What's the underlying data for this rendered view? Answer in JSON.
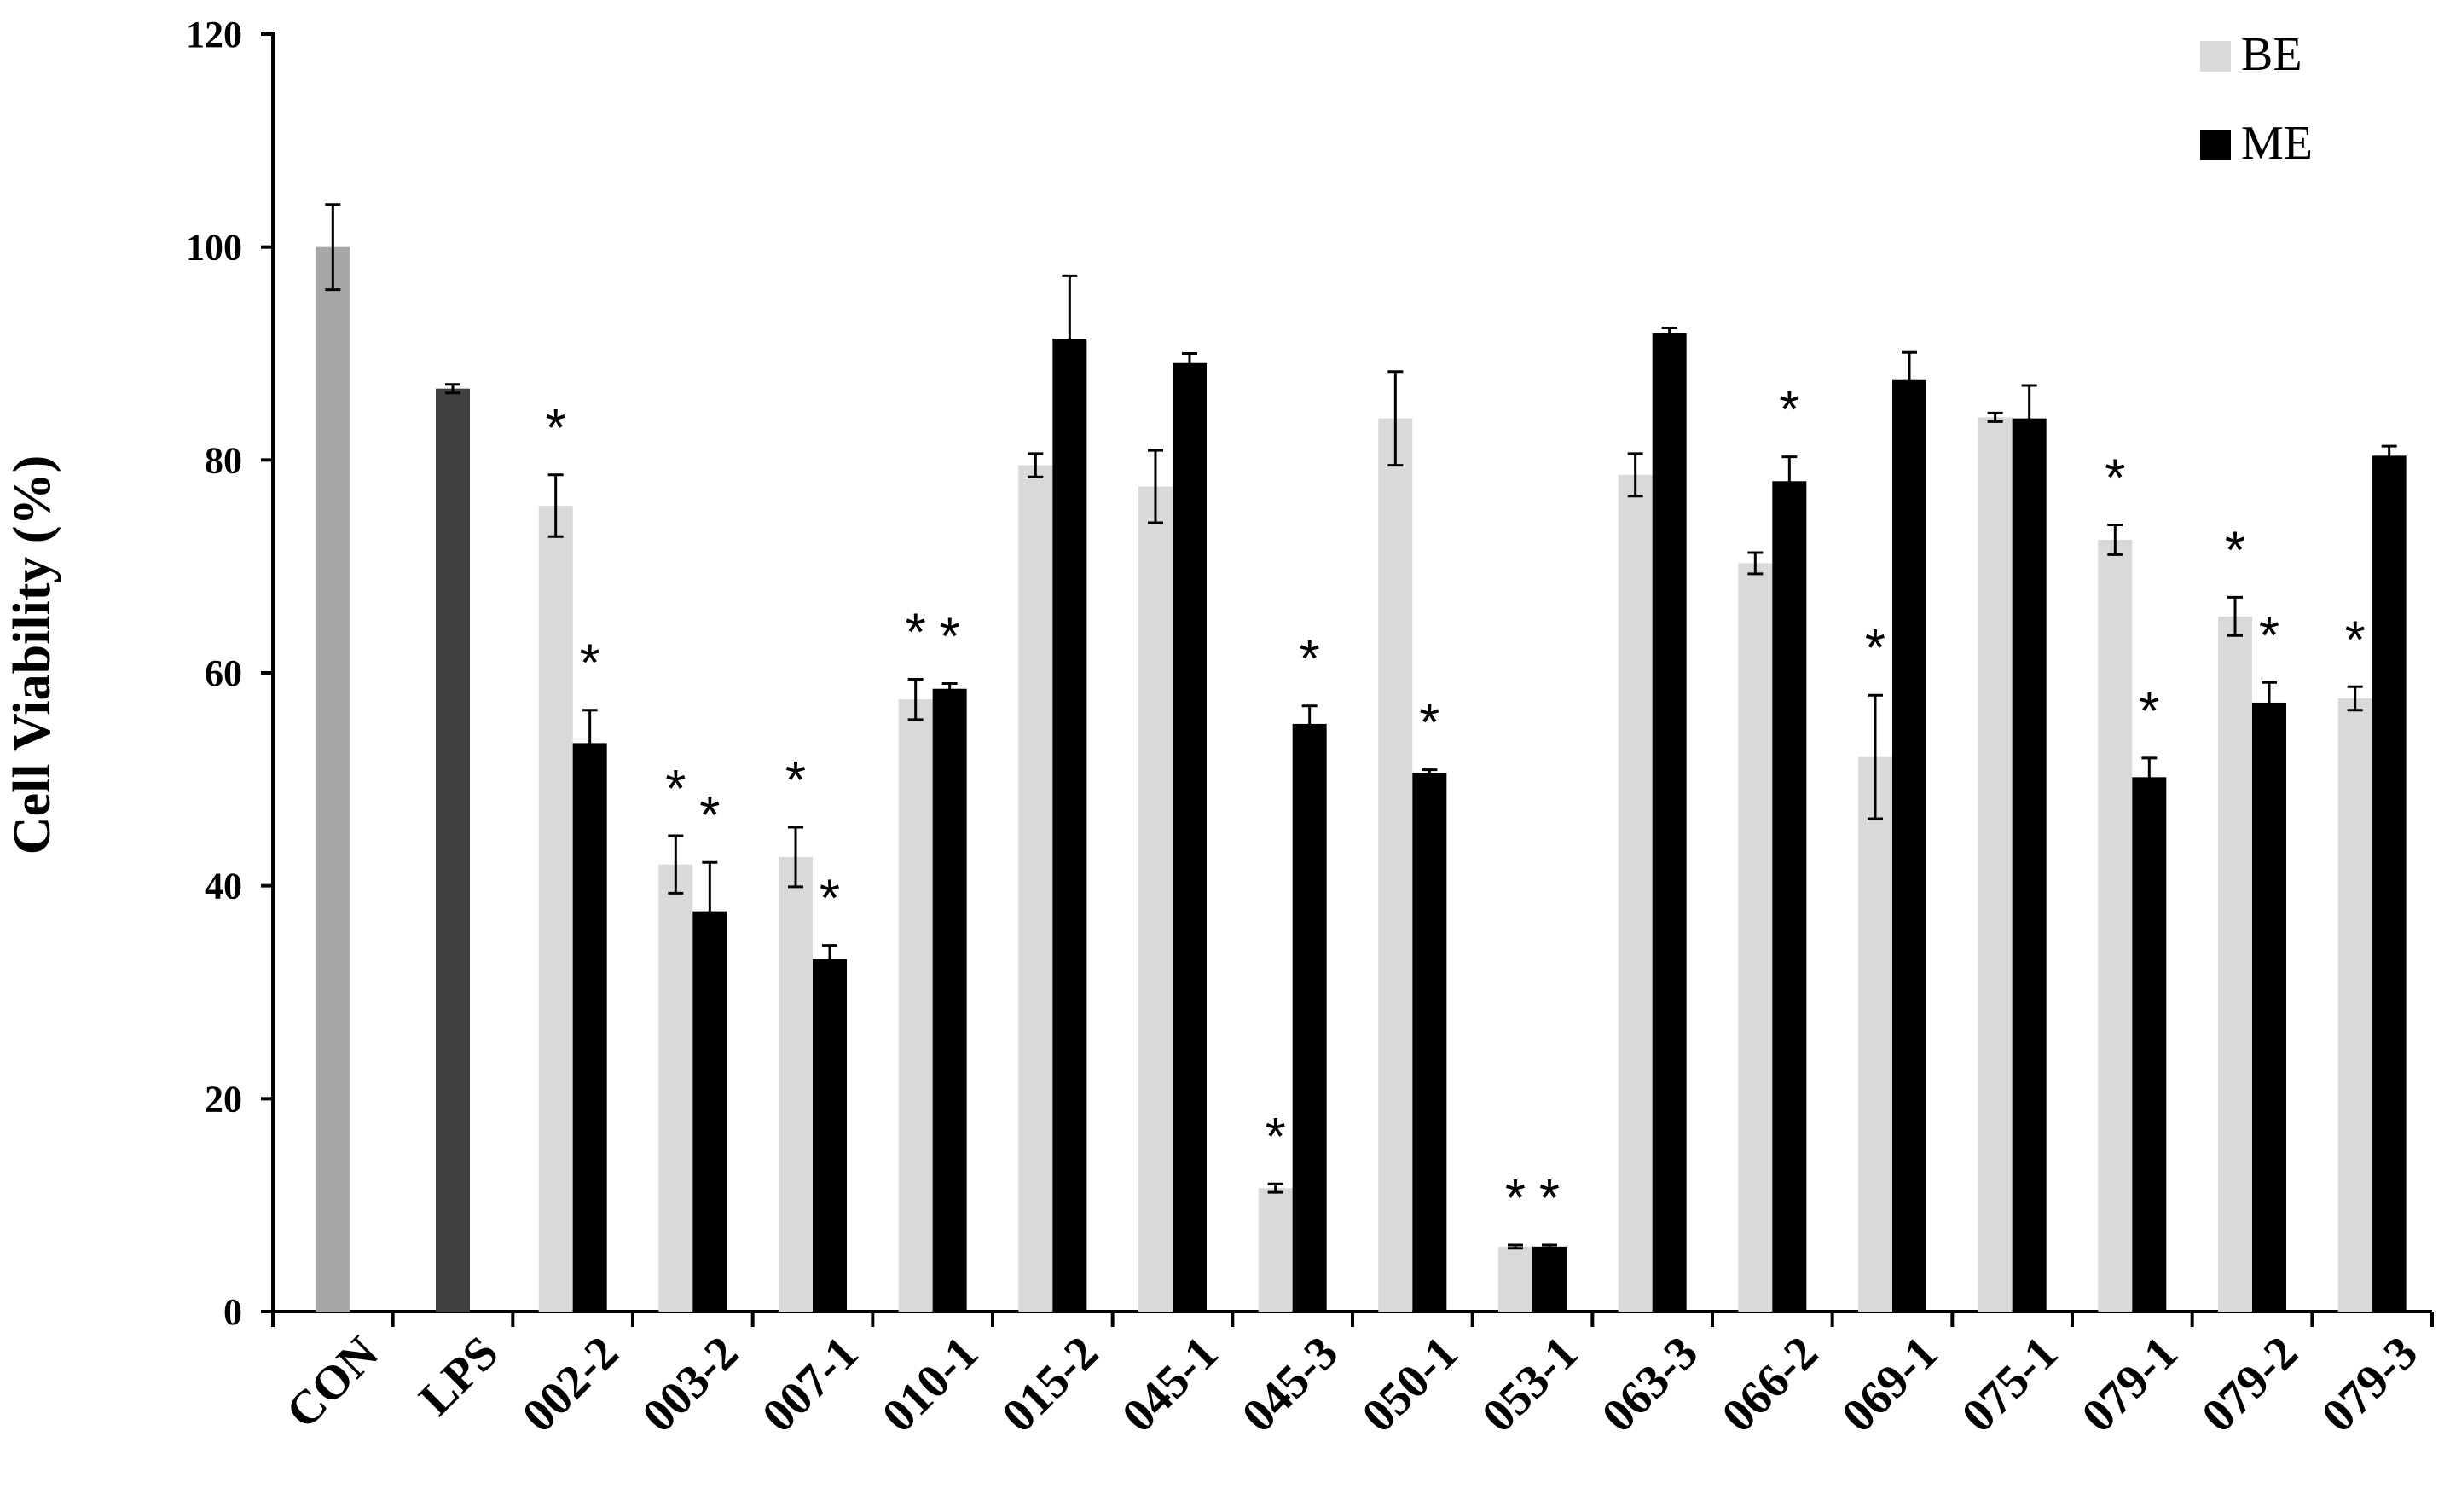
{
  "chart_data": {
    "type": "bar",
    "ylabel": "Cell Viability (%)",
    "xlabel": "",
    "ylim": [
      0,
      120
    ],
    "yticks": [
      0,
      20,
      40,
      60,
      80,
      100,
      120
    ],
    "grid": false,
    "legend_position": "top-right",
    "categories": [
      "CON",
      "LPS",
      "002-2",
      "003-2",
      "007-1",
      "010-1",
      "015-2",
      "045-1",
      "045-3",
      "050-1",
      "053-1",
      "063-3",
      "066-2",
      "069-1",
      "075-1",
      "079-1",
      "079-2",
      "079-3"
    ],
    "controls": [
      {
        "category": "CON",
        "value": 100,
        "error": 4,
        "color": "#a6a6a6"
      },
      {
        "category": "LPS",
        "value": 86.7,
        "error": 0.4,
        "color": "#404040"
      }
    ],
    "series": [
      {
        "name": "BE",
        "color": "#d9d9d9",
        "values": [
          null,
          null,
          75.7,
          42.0,
          42.7,
          57.5,
          79.5,
          77.5,
          11.6,
          83.9,
          6.1,
          78.6,
          70.3,
          52.1,
          84.0,
          72.5,
          65.3,
          57.6
        ],
        "errors": [
          null,
          null,
          2.9,
          2.7,
          2.8,
          1.9,
          1.1,
          3.4,
          0.4,
          4.4,
          0.15,
          2.0,
          1.0,
          5.8,
          0.4,
          1.4,
          1.8,
          1.1
        ],
        "significant": [
          false,
          false,
          true,
          true,
          true,
          true,
          false,
          false,
          true,
          false,
          true,
          false,
          false,
          true,
          false,
          true,
          true,
          true
        ]
      },
      {
        "name": "ME",
        "color": "#000000",
        "values": [
          null,
          null,
          53.4,
          37.6,
          33.1,
          58.5,
          91.4,
          89.1,
          55.2,
          50.6,
          6.1,
          91.9,
          78.0,
          87.5,
          83.9,
          50.2,
          57.2,
          80.4
        ],
        "errors": [
          null,
          null,
          3.1,
          4.6,
          1.3,
          0.5,
          5.9,
          0.9,
          1.7,
          0.3,
          0.15,
          0.5,
          2.3,
          2.6,
          3.1,
          1.8,
          1.9,
          0.9
        ],
        "significant": [
          false,
          false,
          true,
          true,
          true,
          true,
          false,
          false,
          true,
          true,
          true,
          false,
          true,
          false,
          false,
          true,
          true,
          false
        ]
      }
    ],
    "significance_marker": "*"
  }
}
